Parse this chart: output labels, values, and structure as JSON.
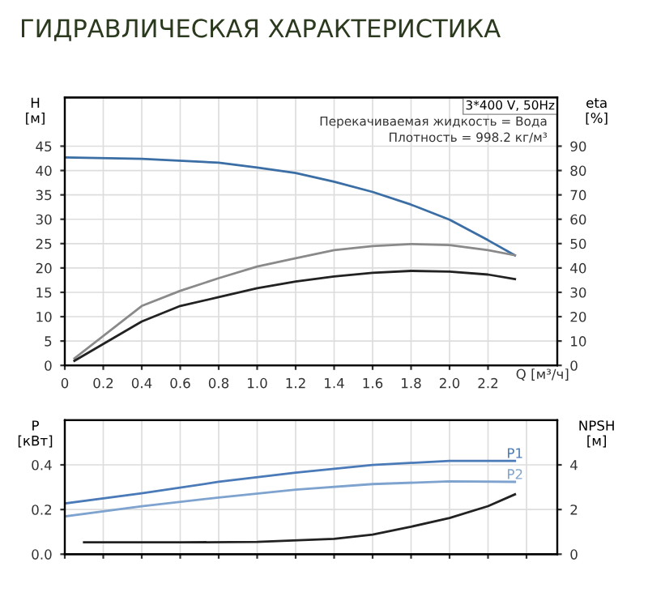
{
  "chart_data": [
    {
      "type": "line",
      "title": "ГИДРАВЛИЧЕСКАЯ ХАРАКТЕРИСТИКА",
      "ylabel": "H\n[м]",
      "y2label": "eta\n[%]",
      "annotations": [
        "3*400 V, 50Hz",
        "Перекачиваемая жидкость = Вода",
        "Плотность = 998.2 кг/м³"
      ],
      "xlim": [
        0,
        2.56
      ],
      "xticks": [
        0,
        {
          "value": 0.2,
          "label": "0.2"
        },
        {
          "value": 0.4,
          "label": "0.4"
        },
        {
          "value": 0.6,
          "label": "0.6"
        },
        {
          "value": 0.8,
          "label": "0.8"
        },
        {
          "value": 1.0,
          "label": "1.0"
        },
        {
          "value": 1.2,
          "label": "1.2"
        },
        {
          "value": 1.4,
          "label": "1.4"
        },
        {
          "value": 1.6,
          "label": "1.6"
        },
        {
          "value": 1.8,
          "label": "1.8"
        },
        {
          "value": 2.0,
          "label": "2.0"
        },
        {
          "value": 2.2,
          "label": "2.2"
        }
      ],
      "xlabel": "Q [м³/ч]",
      "ylim": [
        0,
        55
      ],
      "yticks": [
        0,
        5,
        10,
        15,
        20,
        25,
        30,
        35,
        40,
        45
      ],
      "y2lim": [
        0,
        110
      ],
      "y2ticks": [
        0,
        10,
        20,
        30,
        40,
        50,
        60,
        70,
        80,
        90
      ],
      "grid": true,
      "legend": false,
      "marker": "none",
      "line_style": "solid",
      "series": [
        {
          "color": "#3a6ea5",
          "x": [
            0,
            0.4,
            0.8,
            1.0,
            1.2,
            1.4,
            1.6,
            1.8,
            2.0,
            2.2,
            2.34
          ],
          "values": [
            42.7,
            42.4,
            41.6,
            40.6,
            39.5,
            37.7,
            35.6,
            33.0,
            29.9,
            25.7,
            22.6
          ]
        },
        {
          "color": "#8a8a8a",
          "axis": "y2",
          "x": [
            0.05,
            0.4,
            0.6,
            0.8,
            1.0,
            1.2,
            1.4,
            1.6,
            1.8,
            2.0,
            2.2,
            2.34
          ],
          "values": [
            2.9,
            24.4,
            30.6,
            35.8,
            40.6,
            44,
            47.3,
            49,
            49.8,
            49.4,
            47.3,
            45.2
          ]
        },
        {
          "color": "#222222",
          "axis": "y2",
          "x": [
            0.05,
            0.4,
            0.6,
            0.8,
            1.0,
            1.2,
            1.4,
            1.6,
            1.8,
            2.0,
            2.2,
            2.34
          ],
          "values": [
            1.9,
            18,
            24.4,
            28,
            31.7,
            34.4,
            36.5,
            38,
            38.8,
            38.5,
            37.3,
            35.4
          ]
        }
      ]
    },
    {
      "type": "line",
      "ylabel": "P\n[кВт]",
      "y2label": "NPSH\n[м]",
      "tick_labels": "y",
      "xlim": [
        0,
        2.56
      ],
      "ylim": [
        0,
        0.6
      ],
      "yticks": [
        {
          "value": 0.0,
          "label": "0.0"
        },
        {
          "value": 0.2,
          "label": "0.2"
        },
        {
          "value": 0.4,
          "label": "0.4"
        }
      ],
      "y2lim": [
        0,
        6
      ],
      "y2ticks": [
        0,
        2,
        4
      ],
      "grid": true,
      "legend": false,
      "marker": "none",
      "line_style": "solid",
      "series": [
        {
          "name": "P1",
          "color": "#4a7ab8",
          "x": [
            0,
            0.4,
            0.8,
            1.2,
            1.6,
            2.0,
            2.34
          ],
          "values": [
            0.227,
            0.273,
            0.324,
            0.365,
            0.4,
            0.418,
            0.418
          ]
        },
        {
          "name": "P2",
          "color": "#7fa3cf",
          "x": [
            0,
            0.4,
            0.8,
            1.2,
            1.6,
            2.0,
            2.34
          ],
          "values": [
            0.169,
            0.215,
            0.254,
            0.289,
            0.314,
            0.326,
            0.324
          ]
        },
        {
          "color": "#222222",
          "axis": "y2",
          "x": [
            0.1,
            0.6,
            1.0,
            1.4,
            1.6,
            1.8,
            2.0,
            2.2,
            2.34
          ],
          "values": [
            0.53,
            0.53,
            0.55,
            0.69,
            0.88,
            1.23,
            1.62,
            2.15,
            2.68
          ]
        }
      ]
    }
  ]
}
